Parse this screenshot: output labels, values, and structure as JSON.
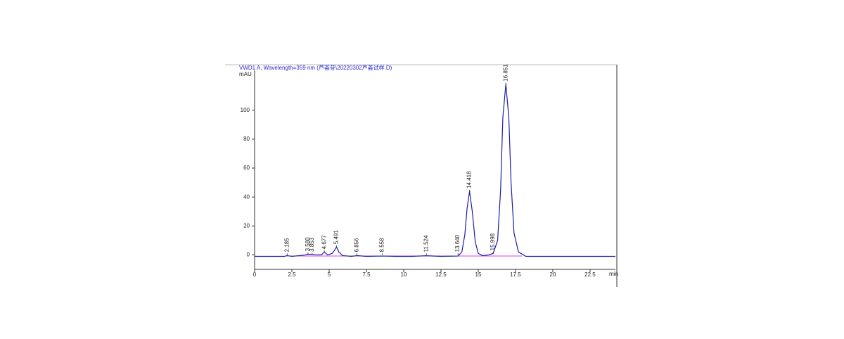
{
  "chart_data": {
    "type": "line",
    "title": "VWD1 A, Wavelength=359 nm (芦荟苷\\20220302芦荟试样.D)",
    "x_unit": "min",
    "y_unit": "mAU",
    "x": [
      0,
      1,
      2,
      2.185,
      2.5,
      3,
      3.4,
      3.58,
      3.853,
      4.2,
      4.5,
      4.677,
      4.9,
      5.2,
      5.35,
      5.491,
      5.65,
      5.9,
      6.5,
      6.856,
      7.5,
      8.558,
      9.5,
      10.5,
      11.524,
      12.5,
      13.64,
      13.9,
      14.1,
      14.25,
      14.418,
      14.6,
      14.8,
      15.0,
      15.3,
      15.7,
      15.998,
      16.3,
      16.5,
      16.65,
      16.851,
      17.05,
      17.2,
      17.4,
      17.7,
      18.2,
      19,
      20,
      21,
      22,
      23,
      24.2
    ],
    "values": [
      -1,
      -1,
      -1,
      -0.5,
      -1,
      -0.5,
      0,
      0.5,
      0.3,
      0,
      0.2,
      2,
      0,
      1,
      3,
      5.5,
      2,
      -0.5,
      -1,
      -0.5,
      -1,
      -0.8,
      -1,
      -1,
      -0.6,
      -1,
      -0.8,
      2,
      14,
      32,
      44,
      30,
      9,
      1,
      -0.5,
      0,
      1,
      10,
      45,
      95,
      118,
      95,
      50,
      15,
      2,
      -1,
      -1,
      -1,
      -1,
      -1,
      -1,
      -1
    ],
    "color": "#1c1ca8",
    "peaks": [
      {
        "value": 2.185,
        "label": "2.185"
      },
      {
        "value": 3.58,
        "label": "3.580"
      },
      {
        "value": 3.853,
        "label": "3.853"
      },
      {
        "value": 4.677,
        "label": "4.677"
      },
      {
        "value": 5.491,
        "label": "5.491"
      },
      {
        "value": 6.856,
        "label": "6.856"
      },
      {
        "value": 8.558,
        "label": "8.558"
      },
      {
        "value": 11.524,
        "label": "11.524"
      },
      {
        "value": 13.64,
        "label": "13.640"
      },
      {
        "value": 14.418,
        "label": "14.418"
      },
      {
        "value": 15.998,
        "label": "15.998"
      },
      {
        "value": 16.851,
        "label": "16.851"
      }
    ],
    "xlim": [
      0,
      24.2
    ],
    "ylim": [
      -10,
      130
    ],
    "xticks": [
      0,
      2.5,
      5,
      7.5,
      10,
      12.5,
      15,
      17.5,
      20,
      22.5
    ],
    "yticks": [
      0,
      20,
      40,
      60,
      80,
      100
    ]
  }
}
